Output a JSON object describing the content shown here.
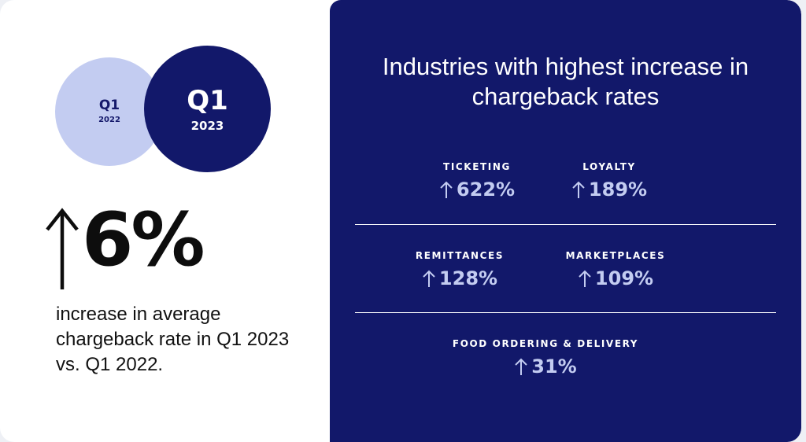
{
  "left": {
    "circle_2022": {
      "quarter": "Q1",
      "year": "2022"
    },
    "circle_2023": {
      "quarter": "Q1",
      "year": "2023"
    },
    "headline_value": "6%",
    "headline_desc": "increase in average chargeback rate in Q1 2023 vs. Q1 2022."
  },
  "right": {
    "title": "Industries with highest increase in chargeback rates",
    "industries": [
      {
        "label": "TICKETING",
        "value": "622%"
      },
      {
        "label": "LOYALTY",
        "value": "189%"
      },
      {
        "label": "REMITTANCES",
        "value": "128%"
      },
      {
        "label": "MARKETPLACES",
        "value": "109%"
      },
      {
        "label": "FOOD ORDERING & DELIVERY",
        "value": "31%"
      }
    ]
  },
  "colors": {
    "navy": "#12186a",
    "lavender": "#c3ccf1",
    "white": "#ffffff"
  }
}
